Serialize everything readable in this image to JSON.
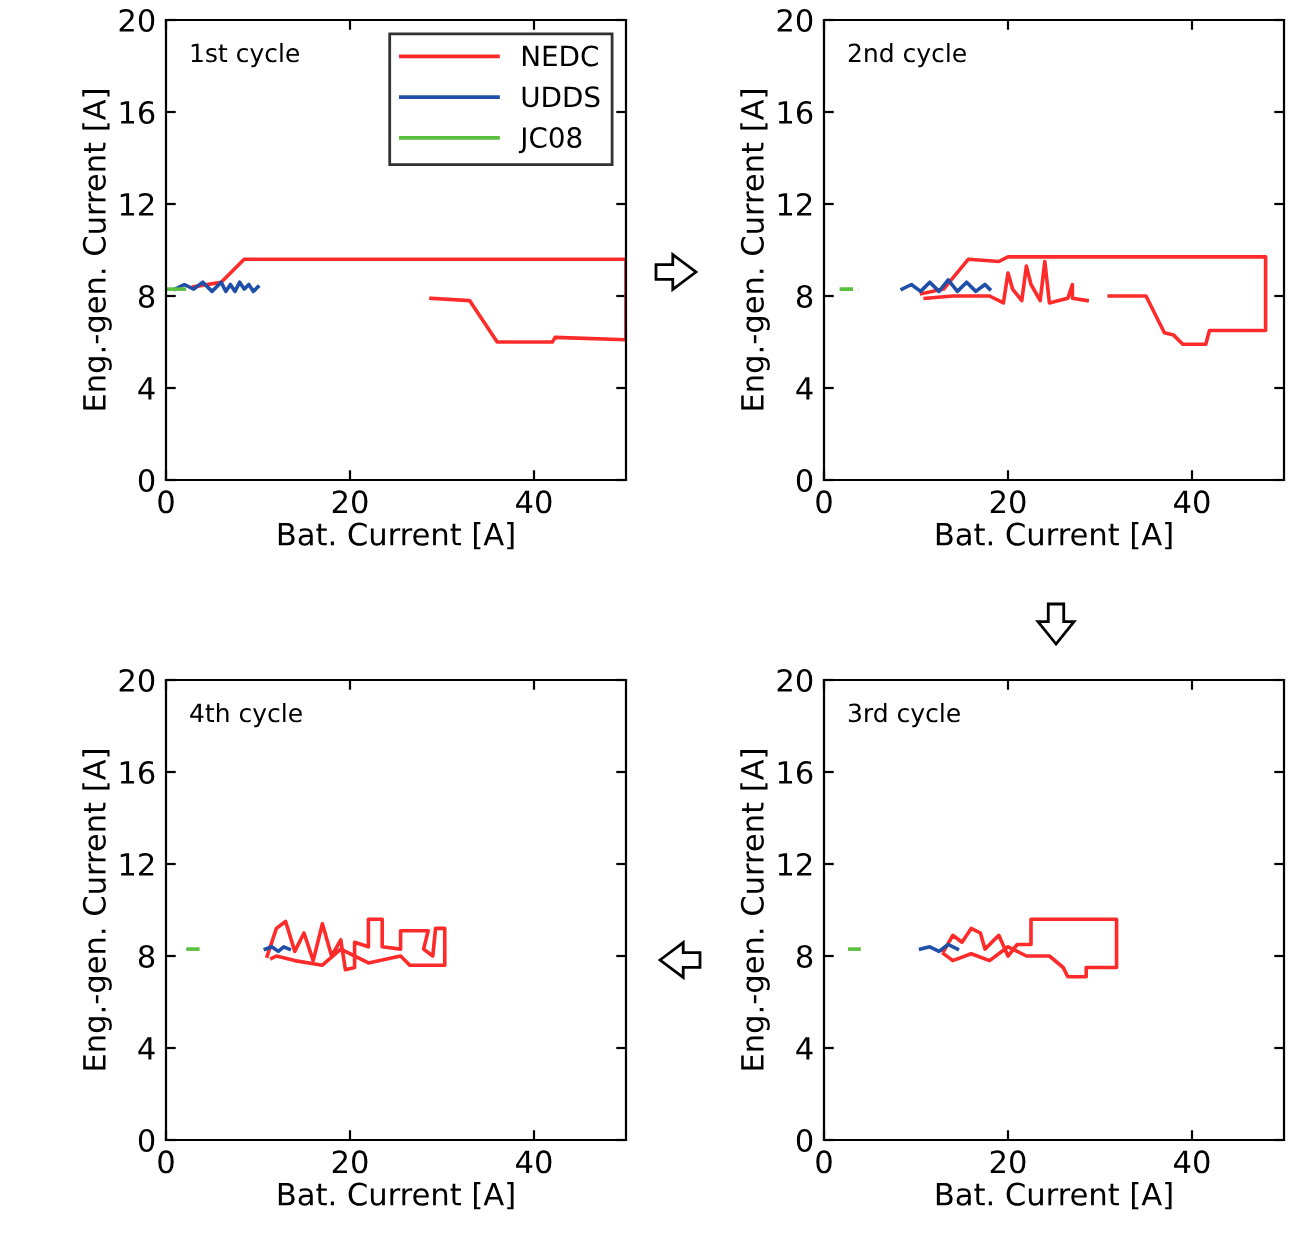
{
  "chart_data": [
    {
      "type": "line",
      "xlabel": "Bat. Current [A]",
      "ylabel": "Eng.-gen. Current [A]",
      "annotations": [
        "1st cycle"
      ],
      "xlim": [
        0,
        50
      ],
      "ylim": [
        0,
        20
      ],
      "xticks": [
        0,
        20,
        40
      ],
      "yticks": [
        0,
        4,
        8,
        12,
        16,
        20
      ],
      "legend": "top right",
      "grid": false,
      "series": [
        {
          "name": "NEDC",
          "color": "#ff2a2a",
          "x": [
            28.8,
            33,
            36,
            42,
            42.3,
            50,
            50,
            8.5,
            6,
            3
          ],
          "values": [
            7.9,
            7.8,
            6.0,
            6.0,
            6.2,
            6.1,
            9.6,
            9.6,
            8.6,
            8.4
          ]
        },
        {
          "name": "UDDS",
          "color": "#1f4fa8",
          "x": [
            1,
            2,
            3,
            4,
            5,
            6,
            6.5,
            7,
            7.5,
            8,
            8.5,
            9,
            9.5,
            10
          ],
          "values": [
            8.3,
            8.5,
            8.3,
            8.6,
            8.2,
            8.6,
            8.2,
            8.5,
            8.2,
            8.6,
            8.3,
            8.5,
            8.2,
            8.4
          ]
        },
        {
          "name": "JC08",
          "color": "#5bbf3f",
          "x": [
            0,
            2
          ],
          "values": [
            8.3,
            8.3
          ]
        }
      ]
    },
    {
      "type": "line",
      "xlabel": "Bat. Current [A]",
      "ylabel": "Eng.-gen. Current [A]",
      "annotations": [
        "2nd cycle"
      ],
      "xlim": [
        0,
        50
      ],
      "ylim": [
        0,
        20
      ],
      "xticks": [
        0,
        20,
        40
      ],
      "yticks": [
        0,
        4,
        8,
        12,
        16,
        20
      ],
      "legend": false,
      "grid": false,
      "series": [
        {
          "color": "#ff2a2a",
          "x": [
            10.6,
            13,
            15.7,
            19,
            20,
            48,
            48,
            41.9,
            41.5,
            39,
            38,
            37,
            35,
            31,
            30,
            28.6,
            27,
            27,
            26.5,
            24.5,
            24,
            23.5,
            22.5,
            22,
            21.5,
            20.5,
            20,
            19.5,
            18,
            14,
            11
          ],
          "values": [
            8.1,
            8.3,
            9.6,
            9.5,
            9.7,
            9.7,
            6.5,
            6.5,
            5.9,
            5.9,
            6.3,
            6.4,
            8.0,
            8.0,
            null,
            7.8,
            7.9,
            8.5,
            7.9,
            7.7,
            9.5,
            7.8,
            8.5,
            9.3,
            7.8,
            8.3,
            9.0,
            7.7,
            8.0,
            8.0,
            7.9
          ]
        },
        {
          "color": "#1f4fa8",
          "x": [
            8.5,
            9.5,
            10.5,
            11.5,
            12.5,
            13.5,
            14.5,
            15.5,
            16.5,
            17.5,
            18
          ],
          "values": [
            8.3,
            8.5,
            8.2,
            8.6,
            8.2,
            8.7,
            8.2,
            8.6,
            8.2,
            8.5,
            8.3
          ]
        },
        {
          "color": "#5bbf3f",
          "x": [
            1.7,
            3.8
          ],
          "values": [
            8.3,
            8.3
          ],
          "line_style": "dashed"
        }
      ]
    },
    {
      "type": "line",
      "xlabel": "Bat. Current [A]",
      "ylabel": "Eng.-gen. Current [A]",
      "annotations": [
        "4th cycle"
      ],
      "xlim": [
        0,
        50
      ],
      "ylim": [
        0,
        20
      ],
      "xticks": [
        0,
        20,
        40
      ],
      "yticks": [
        0,
        4,
        8,
        12,
        16,
        20
      ],
      "legend": false,
      "grid": false,
      "series": [
        {
          "color": "#ff2a2a",
          "x": [
            11,
            12,
            13,
            14,
            15,
            16,
            17,
            18,
            19,
            19.5,
            20.5,
            20.5,
            22,
            22,
            23.5,
            23.5,
            25.5,
            25.5,
            28.5,
            28,
            29,
            29.3,
            30.3,
            30.3,
            26.5,
            25.5,
            22,
            19,
            17,
            14,
            12,
            11.5
          ],
          "values": [
            8.0,
            9.2,
            9.5,
            8.2,
            9.0,
            7.8,
            9.4,
            8.0,
            8.7,
            7.4,
            7.5,
            8.6,
            8.4,
            9.6,
            9.6,
            8.4,
            8.3,
            9.1,
            9.1,
            8.3,
            8.0,
            9.2,
            9.2,
            7.6,
            7.6,
            8.0,
            7.7,
            8.3,
            7.6,
            7.8,
            8.0,
            7.9
          ]
        },
        {
          "color": "#1f4fa8",
          "x": [
            10.8,
            11.5,
            12.2,
            12.8,
            13.4
          ],
          "values": [
            8.3,
            8.4,
            8.2,
            8.4,
            8.3
          ]
        },
        {
          "color": "#5bbf3f",
          "x": [
            2.2,
            4.2
          ],
          "values": [
            8.3,
            8.3
          ],
          "line_style": "dashed"
        }
      ]
    },
    {
      "type": "line",
      "xlabel": "Bat. Current [A]",
      "ylabel": "Eng.-gen. Current [A]",
      "annotations": [
        "3rd cycle"
      ],
      "xlim": [
        0,
        50
      ],
      "ylim": [
        0,
        20
      ],
      "xticks": [
        0,
        20,
        40
      ],
      "yticks": [
        0,
        4,
        8,
        12,
        16,
        20
      ],
      "legend": false,
      "grid": false,
      "series": [
        {
          "color": "#ff2a2a",
          "x": [
            13,
            14,
            15,
            16,
            17,
            17.5,
            19,
            20,
            21,
            22.5,
            22.5,
            31.8,
            31.8,
            28.5,
            28.5,
            26.5,
            26,
            24.5,
            22,
            20,
            18,
            16,
            14,
            13
          ],
          "values": [
            8.2,
            8.9,
            8.6,
            9.2,
            9.0,
            8.3,
            8.9,
            8.0,
            8.5,
            8.5,
            9.6,
            9.6,
            7.5,
            7.5,
            7.1,
            7.1,
            7.5,
            8.0,
            8.0,
            8.4,
            7.8,
            8.1,
            7.8,
            8.1
          ]
        },
        {
          "color": "#1f4fa8",
          "x": [
            10.5,
            11.5,
            12.5,
            13.5,
            14.5
          ],
          "values": [
            8.3,
            8.4,
            8.2,
            8.5,
            8.3
          ]
        },
        {
          "color": "#5bbf3f",
          "x": [
            2.6,
            4.0
          ],
          "values": [
            8.3,
            8.3
          ],
          "line_style": "dashed"
        }
      ]
    }
  ]
}
